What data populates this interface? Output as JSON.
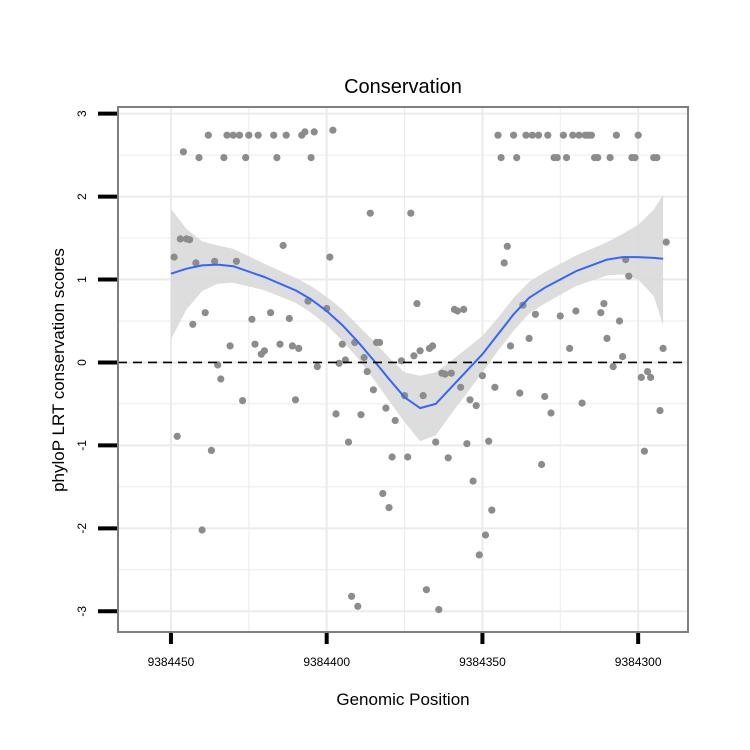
{
  "chart_data": {
    "type": "scatter",
    "title": "Conservation",
    "xlabel": "Genomic Position",
    "ylabel": "phyloP LRT conservation scores",
    "x_reversed": true,
    "xlim": [
      9384467,
      9384284
    ],
    "ylim": [
      -3.25,
      3.08
    ],
    "x_ticks": [
      9384450,
      9384400,
      9384350,
      9384300
    ],
    "x_tick_labels": [
      "9384450",
      "9384400",
      "9384350",
      "9384300"
    ],
    "y_ticks": [
      3,
      2,
      1,
      0,
      -1,
      -2,
      -3
    ],
    "y_tick_labels": [
      "3",
      "2",
      "1",
      "0",
      "-1",
      "-2",
      "-3"
    ],
    "reference_line": {
      "y": 0,
      "style": "dashed"
    },
    "grid": true,
    "colors": {
      "points": "#8c8c8c",
      "smooth_line": "#3366ff",
      "confidence_band": "#d9d9d9",
      "panel_background": "#ffffff",
      "grid": "#ebebeb",
      "panel_border": "#7f7f7f",
      "reference_line": "#000000"
    },
    "points": [
      [
        9384449,
        1.27
      ],
      [
        9384448,
        -0.89
      ],
      [
        9384447,
        1.49
      ],
      [
        9384446,
        2.54
      ],
      [
        9384445,
        1.49
      ],
      [
        9384444,
        1.48
      ],
      [
        9384443,
        0.46
      ],
      [
        9384442,
        1.2
      ],
      [
        9384441,
        2.47
      ],
      [
        9384440,
        -2.02
      ],
      [
        9384439,
        0.6
      ],
      [
        9384438,
        2.74
      ],
      [
        9384437,
        -1.06
      ],
      [
        9384436,
        1.22
      ],
      [
        9384435,
        -0.03
      ],
      [
        9384434,
        -0.2
      ],
      [
        9384433,
        2.47
      ],
      [
        9384432,
        2.74
      ],
      [
        9384431,
        0.2
      ],
      [
        9384430,
        2.74
      ],
      [
        9384429,
        1.22
      ],
      [
        9384428,
        2.74
      ],
      [
        9384427,
        -0.46
      ],
      [
        9384426,
        2.47
      ],
      [
        9384425,
        2.74
      ],
      [
        9384424,
        0.52
      ],
      [
        9384423,
        0.22
      ],
      [
        9384422,
        2.74
      ],
      [
        9384421,
        0.1
      ],
      [
        9384420,
        0.14
      ],
      [
        9384418,
        0.6
      ],
      [
        9384417,
        2.74
      ],
      [
        9384416,
        2.47
      ],
      [
        9384415,
        0.22
      ],
      [
        9384414,
        1.41
      ],
      [
        9384413,
        2.74
      ],
      [
        9384412,
        0.53
      ],
      [
        9384411,
        0.2
      ],
      [
        9384410,
        -0.45
      ],
      [
        9384409,
        0.17
      ],
      [
        9384408,
        2.74
      ],
      [
        9384407,
        2.78
      ],
      [
        9384406,
        0.74
      ],
      [
        9384405,
        2.47
      ],
      [
        9384404,
        2.78
      ],
      [
        9384403,
        -0.05
      ],
      [
        9384400,
        0.65
      ],
      [
        9384399,
        1.27
      ],
      [
        9384398,
        2.8
      ],
      [
        9384397,
        -0.62
      ],
      [
        9384396,
        -0.01
      ],
      [
        9384395,
        0.22
      ],
      [
        9384394,
        0.03
      ],
      [
        9384393,
        -0.96
      ],
      [
        9384392,
        -2.82
      ],
      [
        9384391,
        0.24
      ],
      [
        9384390,
        -2.94
      ],
      [
        9384389,
        -0.63
      ],
      [
        9384388,
        0.06
      ],
      [
        9384387,
        -0.11
      ],
      [
        9384386,
        1.8
      ],
      [
        9384385,
        -0.33
      ],
      [
        9384384,
        0.24
      ],
      [
        9384383,
        0.24
      ],
      [
        9384382,
        -1.58
      ],
      [
        9384381,
        -0.55
      ],
      [
        9384380,
        -1.75
      ],
      [
        9384379,
        -1.14
      ],
      [
        9384378,
        -0.7
      ],
      [
        9384376,
        0.02
      ],
      [
        9384375,
        -0.4
      ],
      [
        9384374,
        -1.14
      ],
      [
        9384373,
        1.8
      ],
      [
        9384372,
        0.08
      ],
      [
        9384371,
        0.71
      ],
      [
        9384370,
        0.14
      ],
      [
        9384369,
        -0.4
      ],
      [
        9384368,
        -2.74
      ],
      [
        9384367,
        0.17
      ],
      [
        9384366,
        0.2
      ],
      [
        9384365,
        -0.96
      ],
      [
        9384364,
        -2.98
      ],
      [
        9384363,
        -0.13
      ],
      [
        9384362,
        -0.14
      ],
      [
        9384361,
        -1.15
      ],
      [
        9384360,
        -0.13
      ],
      [
        9384359,
        0.64
      ],
      [
        9384358,
        0.62
      ],
      [
        9384357,
        -0.3
      ],
      [
        9384356,
        0.64
      ],
      [
        9384355,
        -0.98
      ],
      [
        9384354,
        -0.45
      ],
      [
        9384353,
        -1.43
      ],
      [
        9384352,
        -0.52
      ],
      [
        9384351,
        -2.32
      ],
      [
        9384350,
        -0.16
      ],
      [
        9384349,
        -2.08
      ],
      [
        9384348,
        -0.95
      ],
      [
        9384347,
        -1.78
      ],
      [
        9384346,
        -0.3
      ],
      [
        9384345,
        2.74
      ],
      [
        9384344,
        2.47
      ],
      [
        9384343,
        1.2
      ],
      [
        9384342,
        1.4
      ],
      [
        9384341,
        0.2
      ],
      [
        9384340,
        2.74
      ],
      [
        9384339,
        2.47
      ],
      [
        9384338,
        -0.37
      ],
      [
        9384337,
        0.69
      ],
      [
        9384336,
        2.74
      ],
      [
        9384335,
        0.29
      ],
      [
        9384334,
        2.74
      ],
      [
        9384333,
        0.58
      ],
      [
        9384332,
        2.74
      ],
      [
        9384331,
        -1.23
      ],
      [
        9384330,
        -0.41
      ],
      [
        9384329,
        2.74
      ],
      [
        9384328,
        -0.61
      ],
      [
        9384327,
        2.47
      ],
      [
        9384326,
        2.47
      ],
      [
        9384325,
        0.56
      ],
      [
        9384324,
        2.74
      ],
      [
        9384323,
        2.47
      ],
      [
        9384322,
        0.17
      ],
      [
        9384321,
        2.74
      ],
      [
        9384320,
        0.62
      ],
      [
        9384319,
        2.74
      ],
      [
        9384318,
        -0.49
      ],
      [
        9384317,
        2.74
      ],
      [
        9384316,
        2.74
      ],
      [
        9384315,
        2.74
      ],
      [
        9384314,
        2.47
      ],
      [
        9384313,
        2.47
      ],
      [
        9384312,
        0.6
      ],
      [
        9384311,
        0.71
      ],
      [
        9384310,
        0.29
      ],
      [
        9384309,
        2.47
      ],
      [
        9384308,
        -0.05
      ],
      [
        9384307,
        2.74
      ],
      [
        9384306,
        0.5
      ],
      [
        9384305,
        0.07
      ],
      [
        9384304,
        1.24
      ],
      [
        9384303,
        1.04
      ],
      [
        9384302,
        2.47
      ],
      [
        9384301,
        2.47
      ],
      [
        9384300,
        2.74
      ],
      [
        9384299,
        -0.18
      ],
      [
        9384298,
        -1.07
      ],
      [
        9384297,
        -0.11
      ],
      [
        9384296,
        -0.18
      ],
      [
        9384295,
        2.47
      ],
      [
        9384294,
        2.47
      ],
      [
        9384293,
        -0.58
      ],
      [
        9384292,
        0.17
      ],
      [
        9384291,
        1.45
      ]
    ],
    "smooth": {
      "x": [
        9384450,
        9384445,
        9384440,
        9384435,
        9384430,
        9384420,
        9384410,
        9384405,
        9384400,
        9384395,
        9384390,
        9384385,
        9384380,
        9384375,
        9384370,
        9384365,
        9384360,
        9384355,
        9384350,
        9384345,
        9384340,
        9384335,
        9384330,
        9384320,
        9384310,
        9384305,
        9384300,
        9384295,
        9384292
      ],
      "y": [
        1.07,
        1.13,
        1.17,
        1.18,
        1.16,
        1.03,
        0.87,
        0.76,
        0.62,
        0.45,
        0.25,
        0.03,
        -0.2,
        -0.42,
        -0.55,
        -0.5,
        -0.3,
        -0.1,
        0.1,
        0.34,
        0.58,
        0.78,
        0.9,
        1.1,
        1.24,
        1.27,
        1.27,
        1.26,
        1.25
      ],
      "lower": [
        0.28,
        0.64,
        0.86,
        0.95,
        0.96,
        0.87,
        0.72,
        0.6,
        0.45,
        0.26,
        0.05,
        -0.2,
        -0.46,
        -0.72,
        -0.95,
        -0.88,
        -0.62,
        -0.37,
        -0.12,
        0.14,
        0.38,
        0.59,
        0.71,
        0.92,
        1.05,
        1.06,
        1.0,
        0.8,
        0.45
      ],
      "upper": [
        1.85,
        1.61,
        1.46,
        1.41,
        1.37,
        1.19,
        1.02,
        0.92,
        0.79,
        0.64,
        0.45,
        0.26,
        0.06,
        -0.12,
        -0.16,
        -0.12,
        0.02,
        0.17,
        0.32,
        0.54,
        0.78,
        0.97,
        1.09,
        1.29,
        1.45,
        1.55,
        1.66,
        1.84,
        2.02
      ]
    }
  }
}
